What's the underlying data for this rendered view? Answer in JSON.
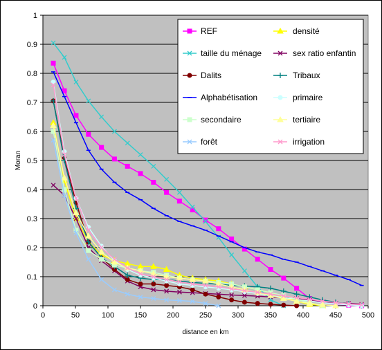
{
  "chart_data": {
    "type": "line",
    "title": "",
    "xlabel": "distance en km",
    "ylabel": "Moran",
    "xlim": [
      0,
      500
    ],
    "ylim": [
      0,
      1
    ],
    "xticks": [
      "0",
      "50",
      "100",
      "150",
      "200",
      "250",
      "300",
      "350",
      "400",
      "450",
      "500"
    ],
    "yticks": [
      "0",
      "0.1",
      "0.2",
      "0.3",
      "0.4",
      "0.5",
      "0.6",
      "0.7",
      "0.8",
      "0.9",
      "1"
    ],
    "grid": "horizontal",
    "legend_position": "top-right, inside plot",
    "plot_background": "#c0c0c0",
    "series": [
      {
        "name": "REF",
        "color": "#ff00ff",
        "marker": "square",
        "x": [
          16,
          33,
          51,
          70,
          90,
          110,
          130,
          150,
          170,
          190,
          210,
          230,
          250,
          270,
          290,
          310,
          330,
          350,
          370,
          390,
          410,
          430,
          450,
          470,
          490
        ],
        "y": [
          0.835,
          0.74,
          0.655,
          0.59,
          0.545,
          0.505,
          0.48,
          0.455,
          0.425,
          0.39,
          0.36,
          0.33,
          0.295,
          0.265,
          0.23,
          0.195,
          0.16,
          0.125,
          0.095,
          0.06,
          0.025,
          0.01,
          0.005,
          0.002,
          0.0
        ]
      },
      {
        "name": "densité",
        "color": "#ffff00",
        "marker": "triangle",
        "x": [
          16,
          33,
          51,
          70,
          90,
          110,
          130,
          150,
          170,
          190,
          210,
          230,
          250,
          270,
          290,
          310,
          330,
          350,
          370,
          390,
          410,
          430
        ],
        "y": [
          0.63,
          0.43,
          0.3,
          0.22,
          0.175,
          0.155,
          0.145,
          0.135,
          0.135,
          0.125,
          0.105,
          0.095,
          0.09,
          0.085,
          0.075,
          0.065,
          0.055,
          0.045,
          0.03,
          0.015,
          0.005,
          0.0
        ]
      },
      {
        "name": "taille du ménage",
        "color": "#33cccc",
        "marker": "x",
        "x": [
          16,
          33,
          51,
          70,
          90,
          110,
          130,
          150,
          170,
          190,
          210,
          230,
          250,
          270,
          290,
          310,
          330,
          350,
          370
        ],
        "y": [
          0.905,
          0.855,
          0.77,
          0.705,
          0.65,
          0.6,
          0.56,
          0.52,
          0.48,
          0.435,
          0.39,
          0.34,
          0.29,
          0.235,
          0.175,
          0.12,
          0.065,
          0.02,
          0.0
        ]
      },
      {
        "name": "sex ratio enfantin",
        "color": "#800060",
        "marker": "x",
        "x": [
          16,
          33,
          51,
          70,
          90,
          110,
          130,
          150,
          170,
          190,
          210,
          230,
          250,
          270,
          290,
          310,
          330,
          350,
          370,
          390,
          410,
          430,
          450,
          470,
          490
        ],
        "y": [
          0.415,
          0.38,
          0.3,
          0.2,
          0.155,
          0.12,
          0.085,
          0.065,
          0.055,
          0.05,
          0.047,
          0.045,
          0.042,
          0.04,
          0.037,
          0.035,
          0.033,
          0.03,
          0.028,
          0.025,
          0.02,
          0.015,
          0.01,
          0.008,
          0.005
        ]
      },
      {
        "name": "Dalits",
        "color": "#800000",
        "marker": "circle",
        "x": [
          16,
          33,
          51,
          70,
          90,
          110,
          130,
          150,
          170,
          190,
          210,
          230,
          250,
          270,
          290,
          310,
          330,
          350,
          370,
          390
        ],
        "y": [
          0.705,
          0.51,
          0.355,
          0.22,
          0.165,
          0.125,
          0.09,
          0.075,
          0.075,
          0.07,
          0.065,
          0.055,
          0.04,
          0.03,
          0.02,
          0.012,
          0.008,
          0.005,
          0.002,
          0.0
        ]
      },
      {
        "name": "Tribaux",
        "color": "#008080",
        "marker": "plus",
        "x": [
          16,
          33,
          51,
          70,
          90,
          110,
          130,
          150,
          170,
          190,
          210,
          230,
          250,
          270,
          290,
          310,
          330,
          350,
          370,
          390,
          410,
          430,
          450,
          470,
          490
        ],
        "y": [
          0.705,
          0.5,
          0.335,
          0.22,
          0.165,
          0.135,
          0.105,
          0.095,
          0.09,
          0.09,
          0.085,
          0.08,
          0.077,
          0.074,
          0.07,
          0.068,
          0.065,
          0.06,
          0.05,
          0.04,
          0.03,
          0.02,
          0.012,
          0.006,
          0.0
        ]
      },
      {
        "name": "Alphabétisation",
        "color": "#0000ff",
        "marker": "dash",
        "x": [
          16,
          33,
          51,
          70,
          90,
          110,
          130,
          150,
          170,
          190,
          210,
          230,
          250,
          270,
          290,
          310,
          330,
          350,
          370,
          390,
          410,
          430,
          450,
          470,
          490
        ],
        "y": [
          0.805,
          0.72,
          0.63,
          0.535,
          0.47,
          0.425,
          0.39,
          0.365,
          0.335,
          0.31,
          0.29,
          0.275,
          0.26,
          0.24,
          0.22,
          0.2,
          0.185,
          0.175,
          0.16,
          0.15,
          0.135,
          0.12,
          0.105,
          0.09,
          0.07
        ]
      },
      {
        "name": "primaire",
        "color": "#ccffff",
        "marker": "circle",
        "x": [
          16,
          33,
          51,
          70,
          90,
          110,
          130,
          150,
          170,
          190,
          210,
          230,
          250,
          270,
          290,
          310,
          330,
          350,
          370,
          390,
          410,
          430,
          450,
          470,
          490
        ],
        "y": [
          0.77,
          0.53,
          0.37,
          0.27,
          0.205,
          0.155,
          0.125,
          0.105,
          0.095,
          0.085,
          0.075,
          0.07,
          0.065,
          0.06,
          0.055,
          0.048,
          0.042,
          0.035,
          0.028,
          0.022,
          0.016,
          0.01,
          0.006,
          0.003,
          0.0
        ]
      },
      {
        "name": "secondaire",
        "color": "#ccffcc",
        "marker": "square",
        "x": [
          16,
          33,
          51,
          70,
          90,
          110,
          130,
          150,
          170,
          190,
          210,
          230,
          250,
          270,
          290,
          310,
          330,
          350,
          370,
          390,
          410,
          430
        ],
        "y": [
          0.6,
          0.4,
          0.26,
          0.19,
          0.16,
          0.14,
          0.13,
          0.12,
          0.115,
          0.105,
          0.095,
          0.09,
          0.085,
          0.08,
          0.075,
          0.065,
          0.055,
          0.045,
          0.035,
          0.022,
          0.01,
          0.0
        ]
      },
      {
        "name": "tertiaire",
        "color": "#ffff99",
        "marker": "triangle",
        "x": [
          16,
          33,
          51,
          70,
          90,
          110,
          130,
          150,
          170,
          190,
          210,
          230,
          250,
          270,
          290,
          310,
          330,
          350,
          370,
          390,
          410,
          430,
          450
        ],
        "y": [
          0.62,
          0.44,
          0.32,
          0.24,
          0.185,
          0.15,
          0.13,
          0.12,
          0.11,
          0.1,
          0.095,
          0.09,
          0.085,
          0.075,
          0.065,
          0.055,
          0.045,
          0.035,
          0.025,
          0.015,
          0.008,
          0.003,
          0.0
        ]
      },
      {
        "name": "forêt",
        "color": "#99ccff",
        "marker": "x",
        "x": [
          16,
          33,
          51,
          70,
          90,
          110,
          130,
          150,
          170,
          190,
          210,
          230,
          250,
          270
        ],
        "y": [
          0.57,
          0.38,
          0.25,
          0.16,
          0.09,
          0.055,
          0.04,
          0.03,
          0.025,
          0.02,
          0.018,
          0.015,
          0.008,
          0.0
        ]
      },
      {
        "name": "irrigation",
        "color": "#ff99cc",
        "marker": "x",
        "x": [
          16,
          33,
          51,
          70,
          90,
          110,
          130,
          150,
          170,
          190,
          210,
          230,
          250,
          270,
          290,
          310,
          330,
          350,
          370,
          390,
          410,
          430,
          450,
          470,
          490
        ],
        "y": [
          0.76,
          0.52,
          0.37,
          0.26,
          0.2,
          0.16,
          0.13,
          0.11,
          0.1,
          0.09,
          0.082,
          0.075,
          0.07,
          0.065,
          0.058,
          0.052,
          0.046,
          0.04,
          0.034,
          0.028,
          0.022,
          0.016,
          0.011,
          0.006,
          0.003
        ]
      }
    ]
  }
}
